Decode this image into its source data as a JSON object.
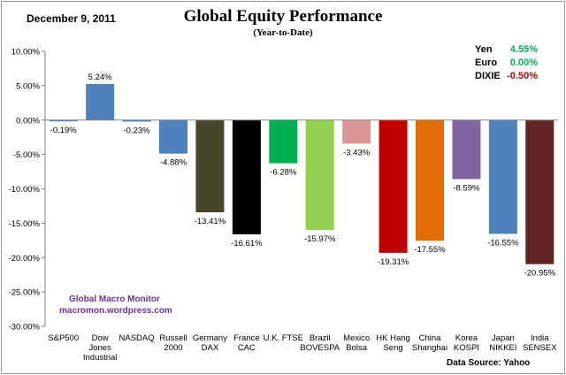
{
  "header": {
    "date": "December 9,  2011"
  },
  "legend_box": {
    "items": [
      {
        "name": "Yen",
        "value": "4.55%",
        "color": "#00b050"
      },
      {
        "name": "Euro",
        "value": "0.00%",
        "color": "#00b050"
      },
      {
        "name": "DIXIE",
        "value": "-0.50%",
        "color": "#c00000"
      }
    ]
  },
  "watermark": {
    "line1": "Global Macro Monitor",
    "line2": "macromon.wordpress.com"
  },
  "source": "Data Source:  Yahoo",
  "chart_data": {
    "type": "bar",
    "title": "Global Equity Performance",
    "subtitle": "(Year-to-Date)",
    "categories": [
      [
        "S&P500"
      ],
      [
        "Dow",
        "Jones",
        "Industrial"
      ],
      [
        "NASDAQ"
      ],
      [
        "Russell",
        "2000"
      ],
      [
        "Germany",
        "DAX"
      ],
      [
        "France",
        "CAC"
      ],
      [
        "U.K. FTSE"
      ],
      [
        "Brazil",
        "BOVESPA"
      ],
      [
        "Mexico",
        "Bolsa"
      ],
      [
        "HK Hang",
        "Seng"
      ],
      [
        "China",
        "Shanghai"
      ],
      [
        "Korea",
        "KOSPI"
      ],
      [
        "Japan",
        "NIKKEI"
      ],
      [
        "India",
        "SENSEX"
      ]
    ],
    "values": [
      -0.19,
      5.24,
      -0.23,
      -4.88,
      -13.41,
      -16.61,
      -6.28,
      -15.97,
      -3.43,
      -19.31,
      -17.55,
      -8.59,
      -16.55,
      -20.95
    ],
    "data_labels": [
      "-0.19%",
      "5.24%",
      "-0.23%",
      "-4.88%",
      "-13.41%",
      "-16.61%",
      "-6.28%",
      "-15.97%",
      "-3.43%",
      "-19.31%",
      "-17.55%",
      "-8.59%",
      "-16.55%",
      "-20.95%"
    ],
    "colors": [
      "#4f81bd",
      "#4f81bd",
      "#4f81bd",
      "#4f81bd",
      "#4a452a",
      "#000000",
      "#00b050",
      "#92d050",
      "#d99694",
      "#c00000",
      "#e36c09",
      "#8064a2",
      "#4f81bd",
      "#632523"
    ],
    "ylim": [
      -30,
      10
    ],
    "yticks": [
      10,
      5,
      0,
      -5,
      -10,
      -15,
      -20,
      -25,
      -30
    ],
    "ytick_labels": [
      "10.00%",
      "5.00%",
      "0.00%",
      "-5.00%",
      "-10.00%",
      "-15.00%",
      "-20.00%",
      "-25.00%",
      "-30.00%"
    ],
    "grid": false
  }
}
